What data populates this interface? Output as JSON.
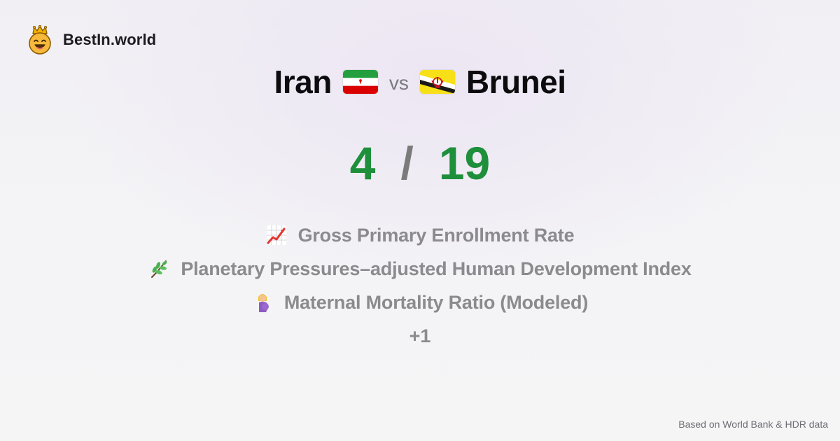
{
  "brand": {
    "name": "BestIn.world",
    "logo_icon": "crowned-smiley-icon"
  },
  "comparison": {
    "left_country": "Iran",
    "left_flag": "iran-flag-icon",
    "vs_label": "vs",
    "right_country": "Brunei",
    "right_flag": "brunei-flag-icon"
  },
  "score": {
    "left": "4",
    "separator": "/",
    "right": "19",
    "color": "#1e8f3a"
  },
  "metrics": [
    {
      "icon": "chart-increasing-icon",
      "label": "Gross Primary Enrollment Rate"
    },
    {
      "icon": "herb-icon",
      "label": "Planetary Pressures–adjusted Human Development Index"
    },
    {
      "icon": "pregnant-woman-icon",
      "label": "Maternal Mortality Ratio (Modeled)"
    }
  ],
  "more_label": "+1",
  "footer": {
    "source": "Based on World Bank & HDR data"
  },
  "colors": {
    "text_primary": "#0c0c0f",
    "text_muted": "#8b8b8f",
    "score_green": "#1e8f3a"
  }
}
